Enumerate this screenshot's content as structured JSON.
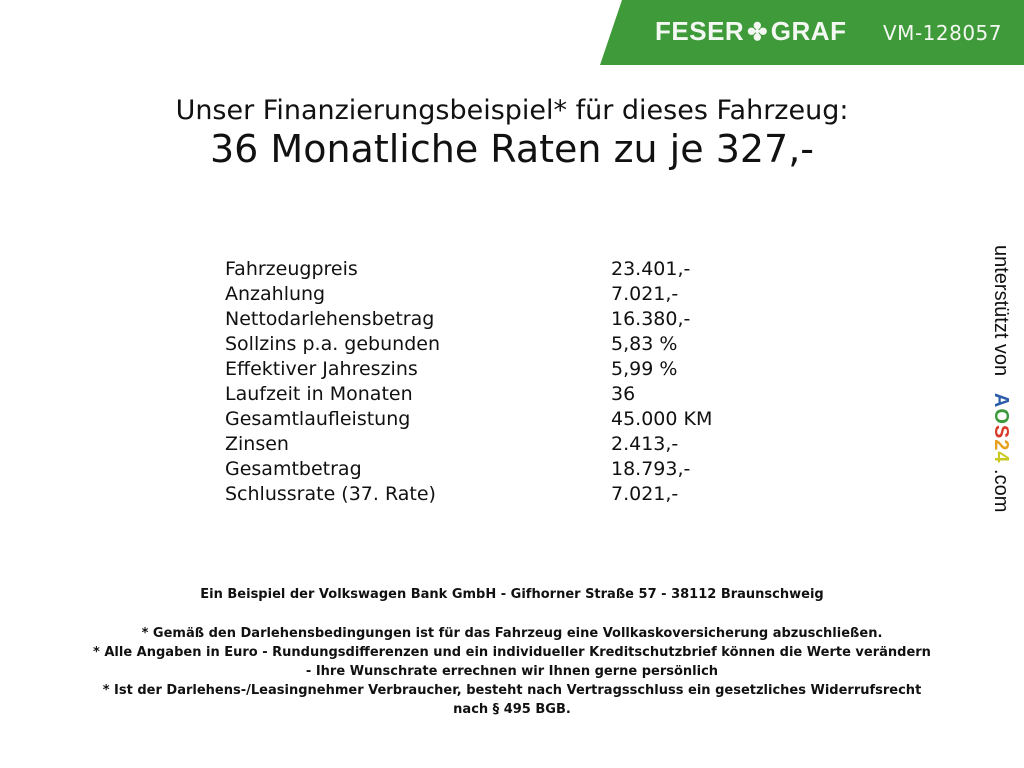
{
  "header": {
    "brand_left": "FESER",
    "brand_right": "GRAF",
    "vehicle_id": "VM-128057",
    "brand_color": "#3f9b3a"
  },
  "title": {
    "line1": "Unser Finanzierungsbeispiel* für dieses Fahrzeug:",
    "line2": "36 Monatliche Raten zu je 327,-"
  },
  "rows": [
    {
      "label": "Fahrzeugpreis",
      "value": "23.401,-"
    },
    {
      "label": "Anzahlung",
      "value": "7.021,-"
    },
    {
      "label": "Nettodarlehensbetrag",
      "value": "16.380,-"
    },
    {
      "label": "Sollzins p.a. gebunden",
      "value": "5,83 %"
    },
    {
      "label": "Effektiver Jahreszins",
      "value": "5,99 %"
    },
    {
      "label": "Laufzeit in Monaten",
      "value": "36"
    },
    {
      "label": "Gesamtlaufleistung",
      "value": "45.000 KM"
    },
    {
      "label": "Zinsen",
      "value": "2.413,-"
    },
    {
      "label": "Gesamtbetrag",
      "value": "18.793,-"
    },
    {
      "label": "Schlussrate (37. Rate)",
      "value": "7.021,-"
    }
  ],
  "sidebar": {
    "prefix": "unterstützt von",
    "logo_letters": [
      "A",
      "O",
      "S",
      "2",
      "4"
    ],
    "suffix": ".com"
  },
  "footer": {
    "bank": "Ein Beispiel der Volkswagen Bank GmbH - Gifhorner Straße 57 - 38112 Braunschweig",
    "notes": [
      "* Gemäß den Darlehensbedingungen ist für das Fahrzeug eine Vollkaskoversicherung abzuschließen.",
      "* Alle Angaben in Euro - Rundungsdifferenzen und ein individueller Kreditschutzbrief können die Werte verändern",
      "- Ihre Wunschrate errechnen wir Ihnen gerne persönlich",
      "* Ist der Darlehens-/Leasingnehmer Verbraucher, besteht nach Vertragsschluss ein gesetzliches Widerrufsrecht",
      "nach § 495 BGB."
    ]
  }
}
